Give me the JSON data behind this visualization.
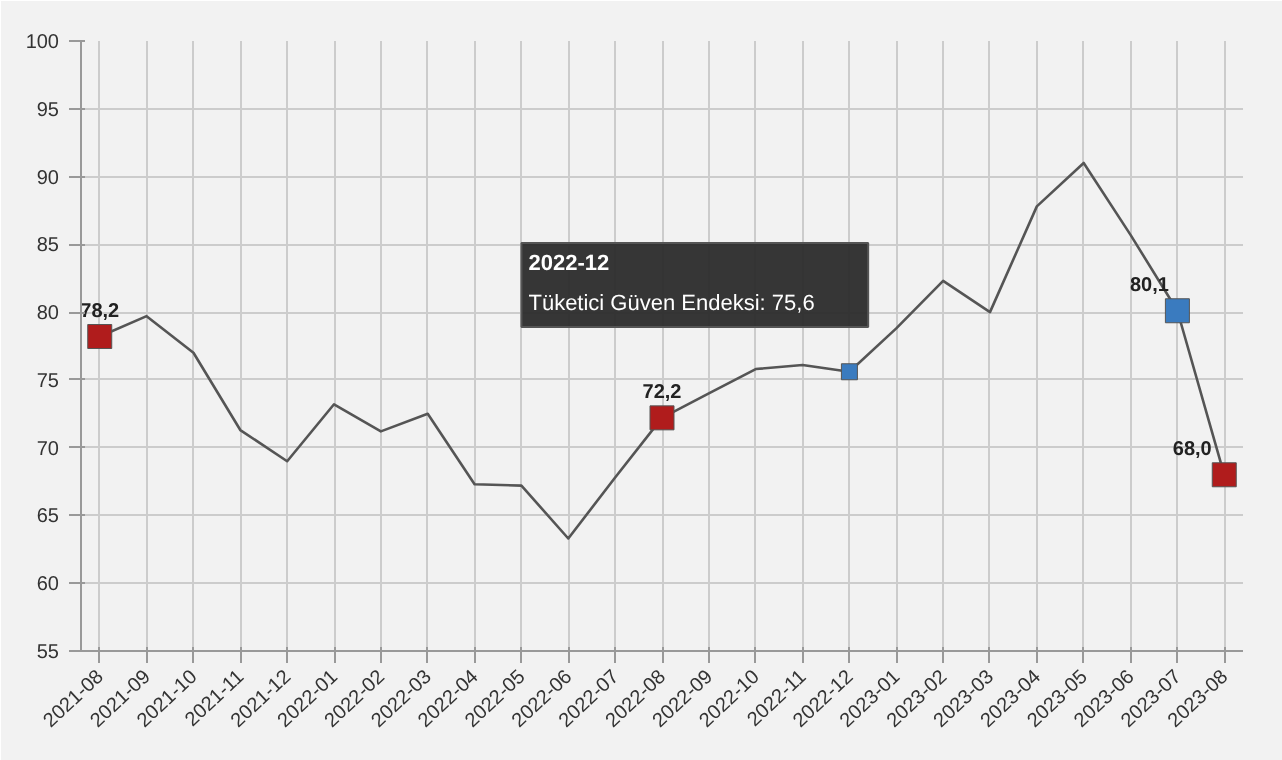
{
  "chart_data": {
    "type": "line",
    "categories": [
      "2021-08",
      "2021-09",
      "2021-10",
      "2021-11",
      "2021-12",
      "2022-01",
      "2022-02",
      "2022-03",
      "2022-04",
      "2022-05",
      "2022-06",
      "2022-07",
      "2022-08",
      "2022-09",
      "2022-10",
      "2022-11",
      "2022-12",
      "2023-01",
      "2023-02",
      "2023-03",
      "2023-04",
      "2023-05",
      "2023-06",
      "2023-07",
      "2023-08"
    ],
    "series": [
      {
        "color": "#555555",
        "values": [
          78.2,
          79.7,
          77.0,
          71.3,
          69.0,
          73.2,
          71.2,
          72.5,
          67.3,
          67.2,
          63.3,
          67.8,
          72.2,
          74.0,
          75.8,
          76.1,
          75.6,
          78.8,
          82.3,
          80.0,
          87.8,
          91.0,
          85.7,
          80.1,
          68.0
        ],
        "colors": [
          "#b01c1c",
          null,
          null,
          null,
          null,
          null,
          null,
          null,
          null,
          null,
          null,
          null,
          "#b01c1c",
          null,
          null,
          null,
          "#3a7bbf",
          null,
          null,
          null,
          null,
          null,
          null,
          "#3a7bbf",
          "#b01c1c"
        ],
        "value_labels": [
          "78,2",
          null,
          null,
          null,
          null,
          null,
          null,
          null,
          null,
          null,
          null,
          null,
          "72,2",
          null,
          null,
          null,
          null,
          null,
          null,
          null,
          null,
          null,
          null,
          "80,1",
          "68,0"
        ]
      }
    ],
    "annotations": [
      "2022-12",
      "Tüketici Güven Endeksi: 75,6"
    ],
    "ylim": [
      55,
      100
    ],
    "yticks": [
      55,
      60,
      65,
      70,
      75,
      80,
      85,
      90,
      95,
      100
    ],
    "grid": true,
    "line_style": "solid"
  }
}
